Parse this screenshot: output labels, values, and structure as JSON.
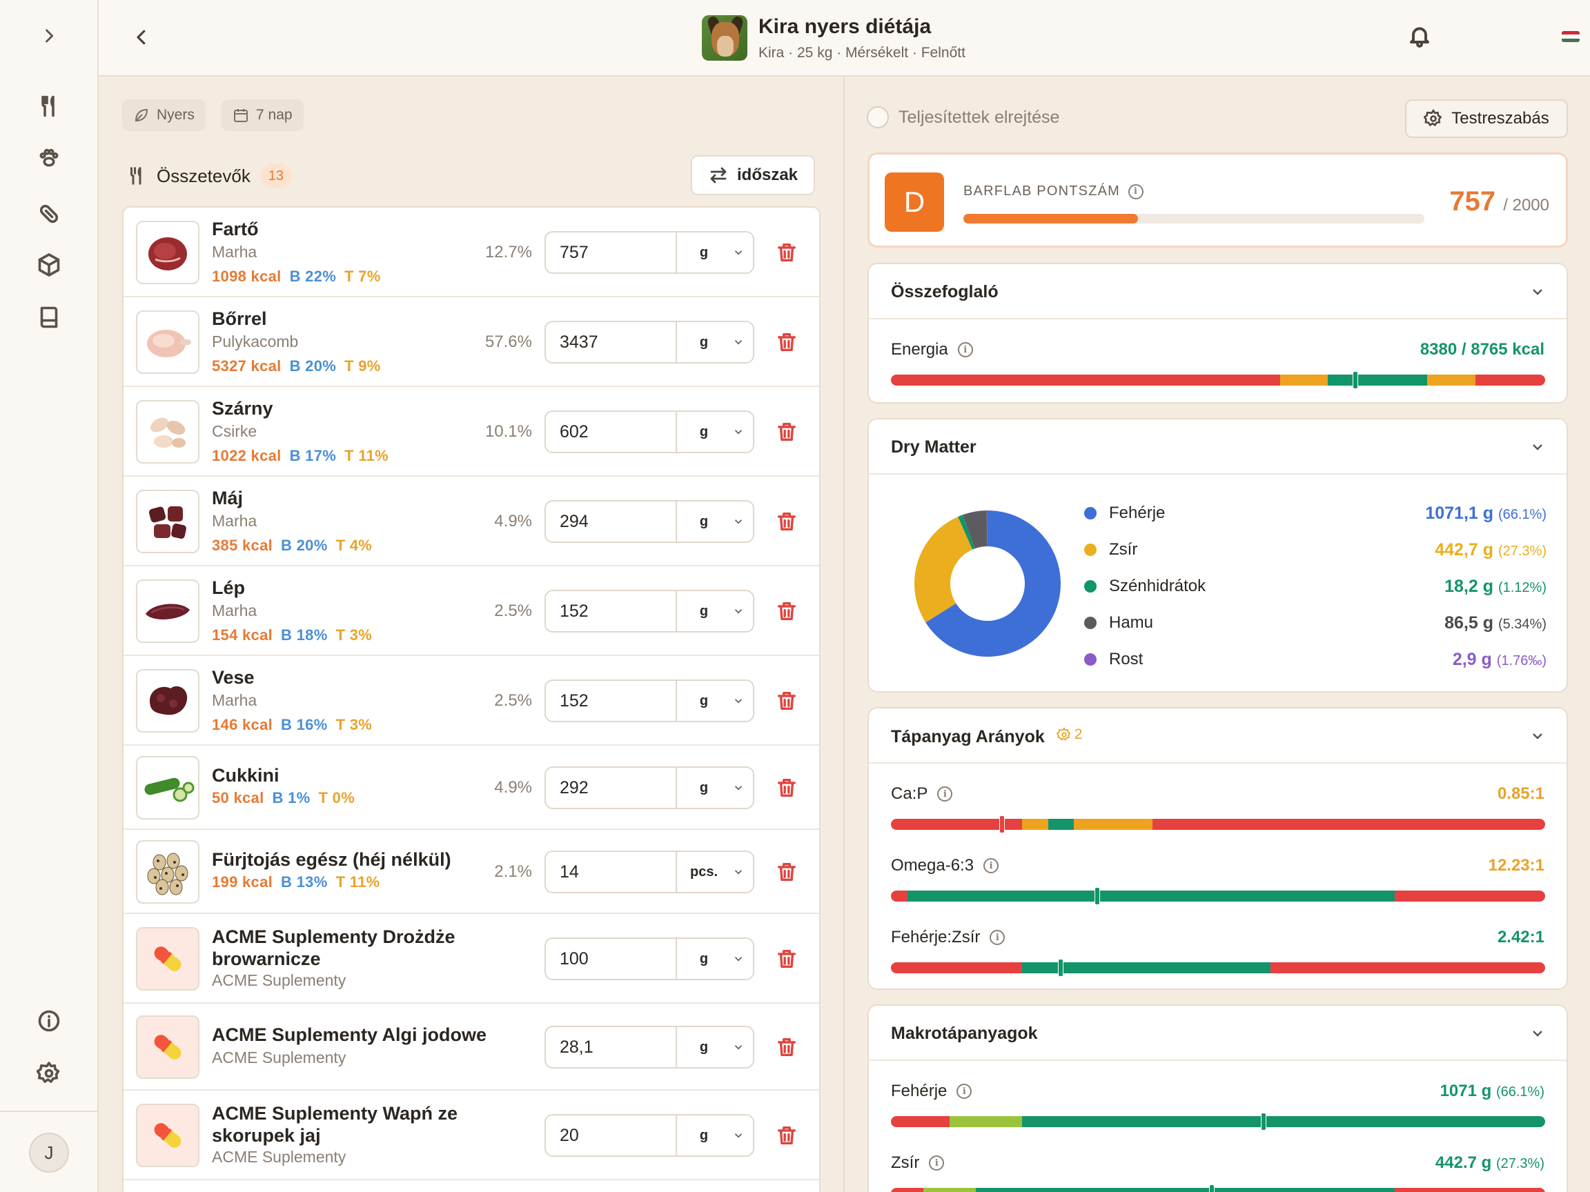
{
  "header": {
    "title": "Kira nyers diétája",
    "subtitle": "Kira · 25 kg · Mérsékelt · Felnőtt"
  },
  "user": {
    "initial": "J"
  },
  "filters": {
    "chip_raw": "Nyers",
    "chip_days": "7 nap"
  },
  "ingredients": {
    "title": "Összetevők",
    "count": "13",
    "period_button": "időszak",
    "items": [
      {
        "name": "Fartő",
        "sub": "Marha",
        "kcal": "1098 kcal",
        "b": "B 22%",
        "t": "T 7%",
        "pct": "12.7%",
        "qty": "757",
        "unit": "g",
        "img": "meat"
      },
      {
        "name": "Bőrrel",
        "sub": "Pulykacomb",
        "kcal": "5327 kcal",
        "b": "B 20%",
        "t": "T 9%",
        "pct": "57.6%",
        "qty": "3437",
        "unit": "g",
        "img": "poultry"
      },
      {
        "name": "Szárny",
        "sub": "Csirke",
        "kcal": "1022 kcal",
        "b": "B 17%",
        "t": "T 11%",
        "pct": "10.1%",
        "qty": "602",
        "unit": "g",
        "img": "wings"
      },
      {
        "name": "Máj",
        "sub": "Marha",
        "kcal": "385 kcal",
        "b": "B 20%",
        "t": "T 4%",
        "pct": "4.9%",
        "qty": "294",
        "unit": "g",
        "img": "liver"
      },
      {
        "name": "Lép",
        "sub": "Marha",
        "kcal": "154 kcal",
        "b": "B 18%",
        "t": "T 3%",
        "pct": "2.5%",
        "qty": "152",
        "unit": "g",
        "img": "spleen"
      },
      {
        "name": "Vese",
        "sub": "Marha",
        "kcal": "146 kcal",
        "b": "B 16%",
        "t": "T 3%",
        "pct": "2.5%",
        "qty": "152",
        "unit": "g",
        "img": "kidney"
      },
      {
        "name": "Cukkini",
        "sub": "",
        "kcal": "50 kcal",
        "b": "B 1%",
        "t": "T 0%",
        "pct": "4.9%",
        "qty": "292",
        "unit": "g",
        "img": "zucchini"
      },
      {
        "name": "Fürjtojás egész (héj nélkül)",
        "sub": "",
        "kcal": "199 kcal",
        "b": "B 13%",
        "t": "T 11%",
        "pct": "2.1%",
        "qty": "14",
        "unit": "pcs.",
        "img": "eggs"
      },
      {
        "name": "ACME Suplementy Drożdże browarnicze",
        "sub": "ACME Suplementy",
        "kcal": "",
        "b": "",
        "t": "",
        "pct": "",
        "qty": "100",
        "unit": "g",
        "img": "pill"
      },
      {
        "name": "ACME Suplementy Algi jodowe",
        "sub": "ACME Suplementy",
        "kcal": "",
        "b": "",
        "t": "",
        "pct": "",
        "qty": "28,1",
        "unit": "g",
        "img": "pill"
      },
      {
        "name": "ACME Suplementy Wapń ze skorupek jaj",
        "sub": "ACME Suplementy",
        "kcal": "",
        "b": "",
        "t": "",
        "pct": "",
        "qty": "20",
        "unit": "g",
        "img": "pill"
      }
    ]
  },
  "right": {
    "hide_completed": "Teljesítettek elrejtése",
    "customize": "Testreszabás",
    "score": {
      "grade": "D",
      "label": "BARFLAB PONTSZÁM",
      "value": "757",
      "max": "/ 2000",
      "fraction": 0.3785
    },
    "summary": {
      "title": "Összefoglaló",
      "energy_label": "Energia",
      "energy_value": "8380 / 8765 kcal",
      "energy_marker": 0.71
    },
    "dry_matter": {
      "title": "Dry Matter",
      "items": [
        {
          "name": "Fehérje",
          "value": "1071,1 g",
          "pct": "(66.1%)",
          "color": "#3d6fd6",
          "share": 66.1
        },
        {
          "name": "Zsír",
          "value": "442,7 g",
          "pct": "(27.3%)",
          "color": "#ebae1e",
          "share": 27.3
        },
        {
          "name": "Szénhidrátok",
          "value": "18,2 g",
          "pct": "(1.12%)",
          "color": "#13946a",
          "share": 1.12
        },
        {
          "name": "Hamu",
          "value": "86,5 g",
          "pct": "(5.34%)",
          "color": "#5c5c60",
          "share": 5.34
        },
        {
          "name": "Rost",
          "value": "2,9 g",
          "pct": "(1.76‰)",
          "color": "#8a5cc8",
          "share": 0.176
        }
      ]
    },
    "ratios": {
      "title": "Tápanyag Arányok",
      "settings_count": "2",
      "items": [
        {
          "label": "Ca:P",
          "value": "0.85:1",
          "color": "#e8a32a",
          "marker": 0.17
        },
        {
          "label": "Omega-6:3",
          "value": "12.23:1",
          "color": "#e8a32a",
          "marker": 0.315
        },
        {
          "label": "Fehérje:Zsír",
          "value": "2.42:1",
          "color": "#13946a",
          "marker": 0.26
        }
      ]
    },
    "macros": {
      "title": "Makrotápanyagok",
      "items": [
        {
          "label": "Fehérje",
          "value": "1071 g",
          "pct": "(66.1%)",
          "color": "#13946a",
          "marker": 0.57
        },
        {
          "label": "Zsír",
          "value": "442.7 g",
          "pct": "(27.3%)",
          "color": "#13946a",
          "marker": 0.49
        }
      ]
    }
  }
}
